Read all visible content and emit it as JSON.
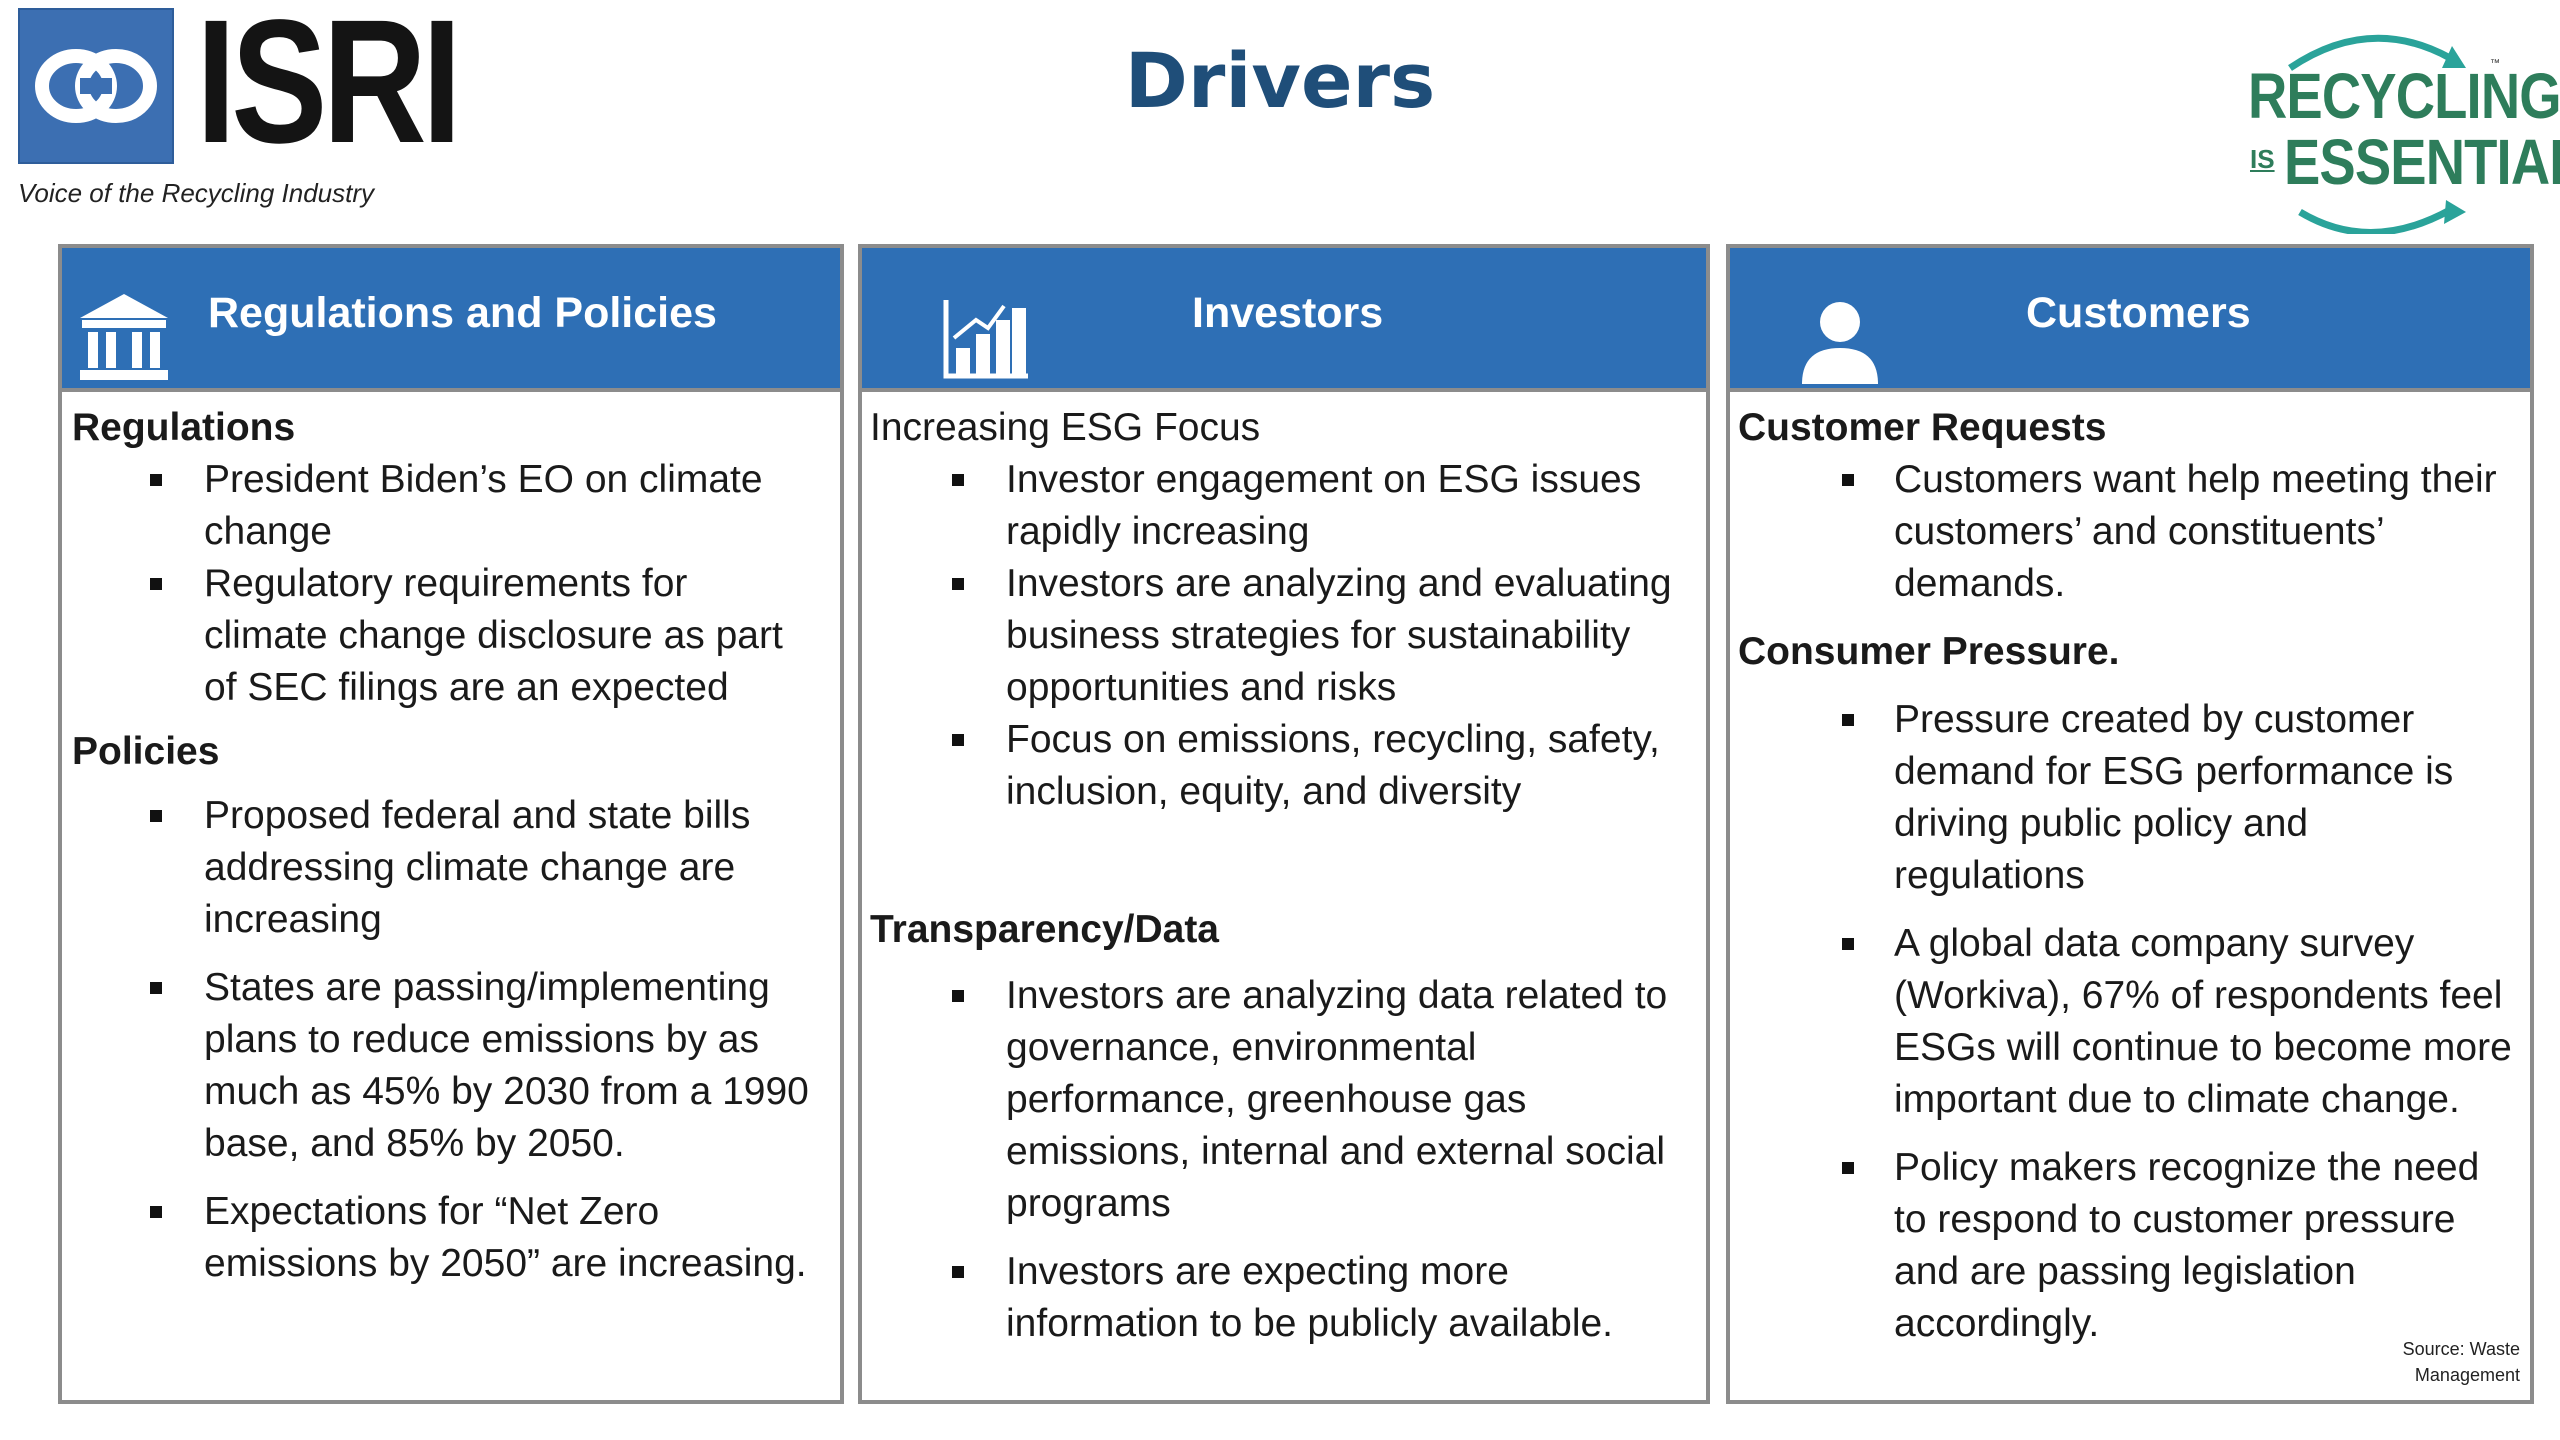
{
  "header": {
    "title": "Drivers",
    "isri_logo": {
      "wordmark": "ISRI",
      "tagline": "Voice of the Recycling Industry",
      "color": "#3c6fb2"
    },
    "recycling_logo": {
      "line1": "RECYCLING",
      "is": "IS",
      "line2": "ESSENTIAL",
      "color": "#2e7d5b"
    }
  },
  "panels": [
    {
      "title": "Regulations and Policies",
      "icon": "government-building-icon",
      "sections": [
        {
          "heading": "Regulations",
          "items": [
            "President Biden’s EO on climate change",
            "Regulatory requirements for climate change disclosure as part of SEC filings are an expected"
          ]
        },
        {
          "heading": "Policies",
          "items": [
            "Proposed federal and state bills addressing climate change are increasing",
            "States are passing/implementing plans to reduce emissions by as much as 45% by 2030 from a 1990 base, and 85% by 2050.",
            "Expectations for “Net Zero emissions by 2050” are increasing."
          ]
        }
      ]
    },
    {
      "title": "Investors",
      "icon": "bar-chart-growth-icon",
      "sections": [
        {
          "heading": "Increasing ESG Focus",
          "items": [
            "Investor engagement on ESG issues rapidly increasing",
            "Investors are analyzing and evaluating business strategies for sustainability opportunities and risks",
            "Focus on emissions, recycling, safety, inclusion, equity, and diversity"
          ]
        },
        {
          "heading": "Transparency/Data",
          "items": [
            "Investors are analyzing data related to governance, environmental performance, greenhouse gas emissions, internal and external social programs",
            "Investors are expecting more information to be publicly available."
          ]
        }
      ]
    },
    {
      "title": "Customers",
      "icon": "person-icon",
      "sections": [
        {
          "heading": "Customer Requests",
          "items": [
            "Customers want help meeting their customers’ and constituents’ demands."
          ]
        },
        {
          "heading": "Consumer Pressure.",
          "items": [
            "Pressure created by customer demand for ESG performance is driving public policy and regulations",
            "A global data company survey (Workiva), 67% of respondents feel ESGs will continue to become more important due to climate change.",
            "Policy makers recognize the need to  respond to customer pressure and are passing legislation accordingly."
          ]
        }
      ],
      "source": {
        "line1": "Source: Waste",
        "line2": "Management"
      }
    }
  ],
  "colors": {
    "header_blue": "#2e6fb5",
    "title_blue": "#1f4e79",
    "border_gray": "#8c8c8c"
  }
}
